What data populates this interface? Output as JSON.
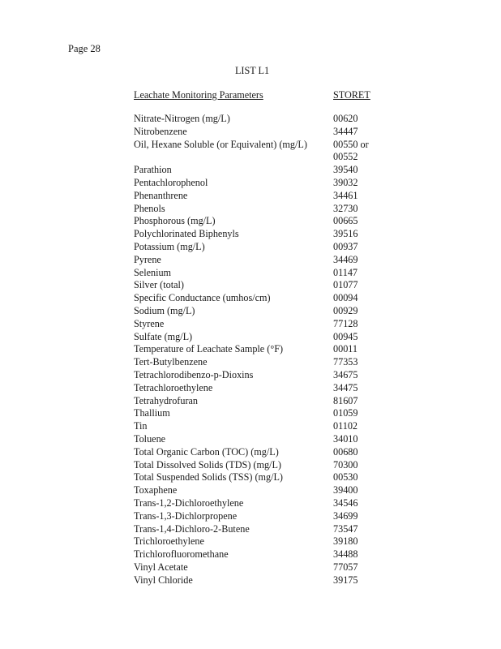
{
  "page_label": "Page 28",
  "title": "LIST L1",
  "headers": {
    "parameter": "Leachate Monitoring Parameters",
    "storet": "STORET"
  },
  "rows": [
    {
      "parameter": "Nitrate-Nitrogen (mg/L)",
      "storet": "00620"
    },
    {
      "parameter": "Nitrobenzene",
      "storet": "34447"
    },
    {
      "parameter": "Oil, Hexane Soluble (or Equivalent) (mg/L)",
      "storet": "00550 or 00552"
    },
    {
      "parameter": "Parathion",
      "storet": "39540"
    },
    {
      "parameter": "Pentachlorophenol",
      "storet": "39032"
    },
    {
      "parameter": "Phenanthrene",
      "storet": "34461"
    },
    {
      "parameter": "Phenols",
      "storet": "32730"
    },
    {
      "parameter": "Phosphorous (mg/L)",
      "storet": "00665"
    },
    {
      "parameter": "Polychlorinated Biphenyls",
      "storet": "39516"
    },
    {
      "parameter": "Potassium (mg/L)",
      "storet": "00937"
    },
    {
      "parameter": "Pyrene",
      "storet": "34469"
    },
    {
      "parameter": "Selenium",
      "storet": "01147"
    },
    {
      "parameter": "Silver (total)",
      "storet": "01077"
    },
    {
      "parameter": "Specific Conductance (umhos/cm)",
      "storet": "00094"
    },
    {
      "parameter": "Sodium (mg/L)",
      "storet": "00929"
    },
    {
      "parameter": "Styrene",
      "storet": "77128"
    },
    {
      "parameter": "Sulfate (mg/L)",
      "storet": "00945"
    },
    {
      "parameter": "Temperature of Leachate Sample (°F)",
      "storet": "00011"
    },
    {
      "parameter": "Tert-Butylbenzene",
      "storet": "77353"
    },
    {
      "parameter": "Tetrachlorodibenzo-p-Dioxins",
      "storet": "34675"
    },
    {
      "parameter": "Tetrachloroethylene",
      "storet": "34475"
    },
    {
      "parameter": "Tetrahydrofuran",
      "storet": "81607"
    },
    {
      "parameter": "Thallium",
      "storet": "01059"
    },
    {
      "parameter": "Tin",
      "storet": "01102"
    },
    {
      "parameter": "Toluene",
      "storet": "34010"
    },
    {
      "parameter": "Total Organic Carbon (TOC) (mg/L)",
      "storet": "00680"
    },
    {
      "parameter": "Total Dissolved Solids (TDS) (mg/L)",
      "storet": "70300"
    },
    {
      "parameter": "Total Suspended Solids (TSS) (mg/L)",
      "storet": "00530"
    },
    {
      "parameter": "Toxaphene",
      "storet": "39400"
    },
    {
      "parameter": "Trans-1,2-Dichloroethylene",
      "storet": "34546"
    },
    {
      "parameter": "Trans-1,3-Dichlorpropene",
      "storet": "34699"
    },
    {
      "parameter": "Trans-1,4-Dichloro-2-Butene",
      "storet": "73547"
    },
    {
      "parameter": "Trichloroethylene",
      "storet": "39180"
    },
    {
      "parameter": "Trichlorofluoromethane",
      "storet": "34488"
    },
    {
      "parameter": "Vinyl Acetate",
      "storet": "77057"
    },
    {
      "parameter": "Vinyl Chloride",
      "storet": "39175"
    }
  ]
}
